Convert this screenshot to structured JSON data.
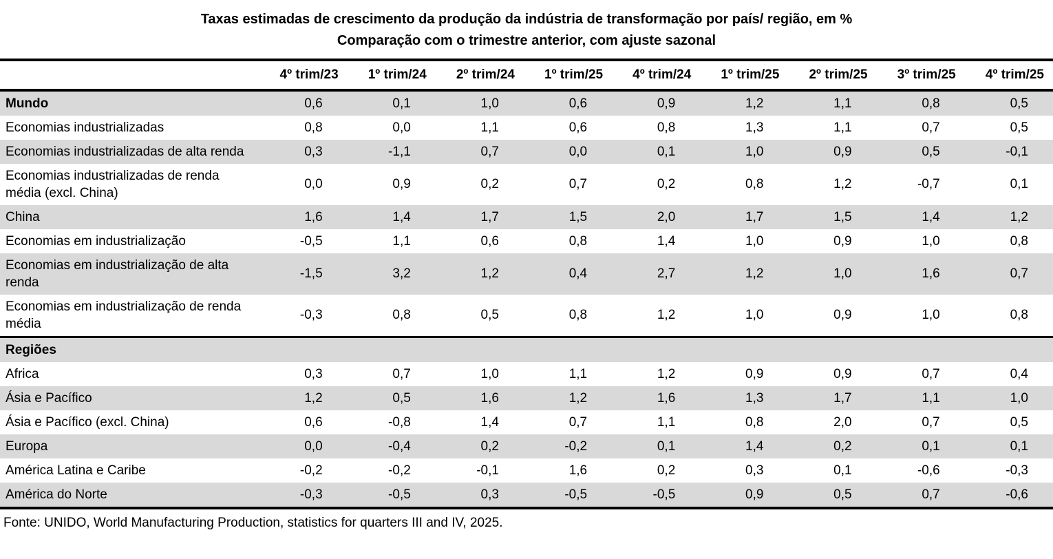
{
  "title": "Taxas estimadas de crescimento da produção da indústria de transformação por país/ região, em %",
  "subtitle": "Comparação com o trimestre anterior, com ajuste sazonal",
  "source": "Fonte: UNIDO, World Manufacturing Production, statistics for quarters III and IV, 2025.",
  "colors": {
    "row_shade": "#d9d9d9",
    "border": "#000000",
    "background": "#ffffff",
    "text": "#000000"
  },
  "chart_data": {
    "type": "table",
    "columns": [
      "4º trim/23",
      "1º trim/24",
      "2º trim/24",
      "1º trim/25",
      "4º trim/24",
      "1º trim/25",
      "2º trim/25",
      "3º trim/25",
      "4º trim/25"
    ],
    "rows": [
      {
        "label": "Mundo",
        "bold": true,
        "values": [
          "0,6",
          "0,1",
          "1,0",
          "0,6",
          "0,9",
          "1,2",
          "1,1",
          "0,8",
          "0,5"
        ]
      },
      {
        "label": "Economias industrializadas",
        "values": [
          "0,8",
          "0,0",
          "1,1",
          "0,6",
          "0,8",
          "1,3",
          "1,1",
          "0,7",
          "0,5"
        ]
      },
      {
        "label": "Economias industrializadas de alta renda",
        "values": [
          "0,3",
          "-1,1",
          "0,7",
          "0,0",
          "0,1",
          "1,0",
          "0,9",
          "0,5",
          "-0,1"
        ]
      },
      {
        "label": "Economias industrializadas de renda média (excl. China)",
        "values": [
          "0,0",
          "0,9",
          "0,2",
          "0,7",
          "0,2",
          "0,8",
          "1,2",
          "-0,7",
          "0,1"
        ]
      },
      {
        "label": "China",
        "values": [
          "1,6",
          "1,4",
          "1,7",
          "1,5",
          "2,0",
          "1,7",
          "1,5",
          "1,4",
          "1,2"
        ]
      },
      {
        "label": "Economias em industrialização",
        "values": [
          "-0,5",
          "1,1",
          "0,6",
          "0,8",
          "1,4",
          "1,0",
          "0,9",
          "1,0",
          "0,8"
        ]
      },
      {
        "label": "Economias em industrialização de alta renda",
        "values": [
          "-1,5",
          "3,2",
          "1,2",
          "0,4",
          "2,7",
          "1,2",
          "1,0",
          "1,6",
          "0,7"
        ]
      },
      {
        "label": "Economias em industrialização de renda média",
        "values": [
          "-0,3",
          "0,8",
          "0,5",
          "0,8",
          "1,2",
          "1,0",
          "0,9",
          "1,0",
          "0,8"
        ]
      },
      {
        "label": "Regiões",
        "section": true
      },
      {
        "label": "Africa",
        "values": [
          "0,3",
          "0,7",
          "1,0",
          "1,1",
          "1,2",
          "0,9",
          "0,9",
          "0,7",
          "0,4"
        ]
      },
      {
        "label": "Ásia e Pacífico",
        "values": [
          "1,2",
          "0,5",
          "1,6",
          "1,2",
          "1,6",
          "1,3",
          "1,7",
          "1,1",
          "1,0"
        ]
      },
      {
        "label": "Ásia e Pacífico (excl. China)",
        "values": [
          "0,6",
          "-0,8",
          "1,4",
          "0,7",
          "1,1",
          "0,8",
          "2,0",
          "0,7",
          "0,5"
        ]
      },
      {
        "label": "Europa",
        "values": [
          "0,0",
          "-0,4",
          "0,2",
          "-0,2",
          "0,1",
          "1,4",
          "0,2",
          "0,1",
          "0,1"
        ]
      },
      {
        "label": "América Latina e Caribe",
        "values": [
          "-0,2",
          "-0,2",
          "-0,1",
          "1,6",
          "0,2",
          "0,3",
          "0,1",
          "-0,6",
          "-0,3"
        ]
      },
      {
        "label": "América do Norte",
        "values": [
          "-0,3",
          "-0,5",
          "0,3",
          "-0,5",
          "-0,5",
          "0,9",
          "0,5",
          "0,7",
          "-0,6"
        ]
      }
    ]
  }
}
